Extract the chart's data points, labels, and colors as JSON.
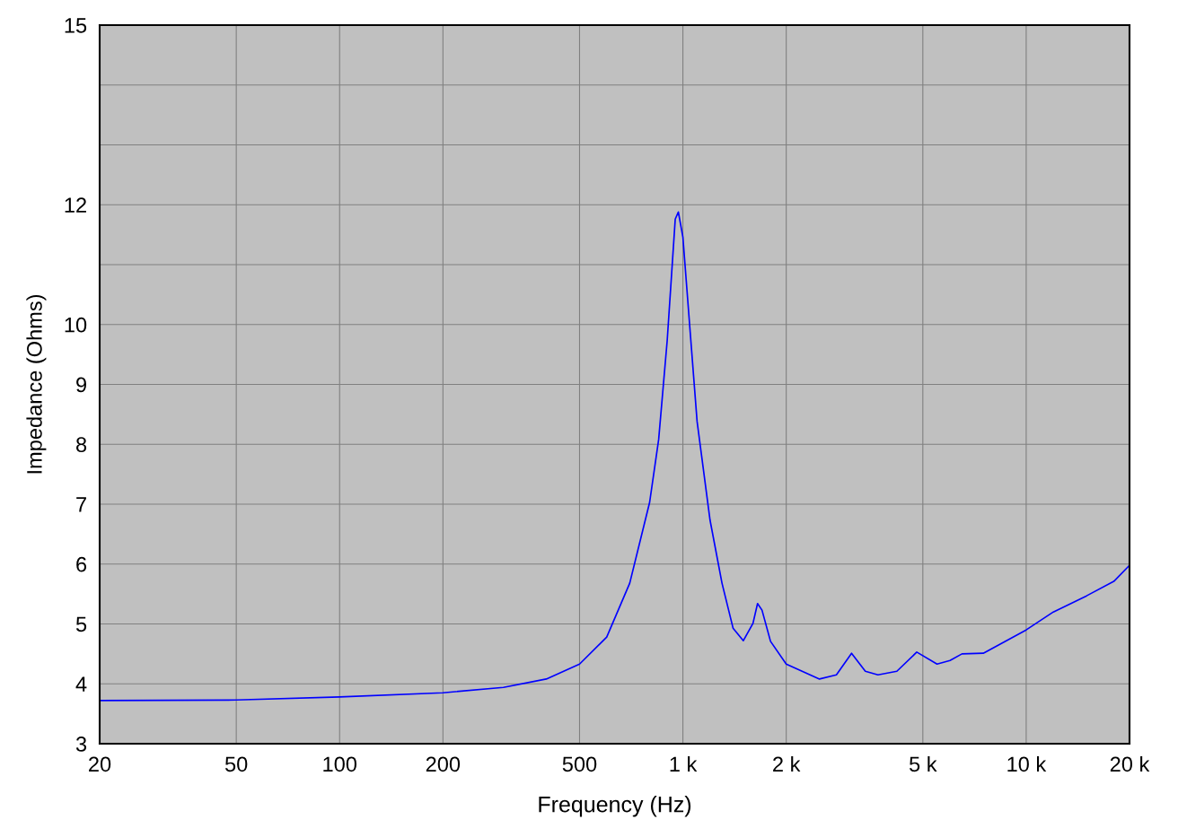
{
  "chart_data": {
    "type": "line",
    "xlabel": "Frequency (Hz)",
    "ylabel": "Impedance (Ohms)",
    "log": "x",
    "grid": true,
    "marker": "none",
    "line_style": "solid",
    "xlim": [
      20,
      20000
    ],
    "ylim": [
      3,
      15
    ],
    "xticks": [
      20,
      50,
      100,
      200,
      500,
      {
        "value": 1000,
        "label": "1 k"
      },
      {
        "value": 2000,
        "label": "2 k"
      },
      {
        "value": 5000,
        "label": "5 k"
      },
      {
        "value": 10000,
        "label": "10 k"
      },
      {
        "value": 20000,
        "label": "20 k"
      }
    ],
    "yticks": [
      3,
      4,
      5,
      6,
      7,
      8,
      9,
      10,
      {
        "value": 11,
        "label": null
      },
      12,
      {
        "value": 13,
        "label": null
      },
      {
        "value": 14,
        "label": null
      },
      15
    ],
    "x": [
      20,
      50,
      100,
      200,
      300,
      400,
      500,
      600,
      700,
      800,
      850,
      900,
      950,
      970,
      1000,
      1050,
      1100,
      1200,
      1300,
      1400,
      1500,
      1600,
      1650,
      1700,
      1800,
      2000,
      2500,
      2800,
      3100,
      3400,
      3700,
      4200,
      4800,
      5500,
      6000,
      6500,
      7500,
      10000,
      12000,
      15000,
      18000,
      20000
    ],
    "series": [
      {
        "color": "#0000ff",
        "values": [
          3.72,
          3.73,
          3.78,
          3.85,
          3.94,
          4.08,
          4.33,
          4.78,
          5.68,
          7.03,
          8.08,
          9.73,
          11.76,
          11.88,
          11.46,
          9.88,
          8.38,
          6.73,
          5.68,
          4.93,
          4.72,
          5.01,
          5.34,
          5.23,
          4.71,
          4.33,
          4.08,
          4.15,
          4.51,
          4.21,
          4.15,
          4.21,
          4.53,
          4.33,
          4.39,
          4.5,
          4.51,
          4.9,
          5.2,
          5.47,
          5.71,
          5.98
        ]
      }
    ]
  }
}
